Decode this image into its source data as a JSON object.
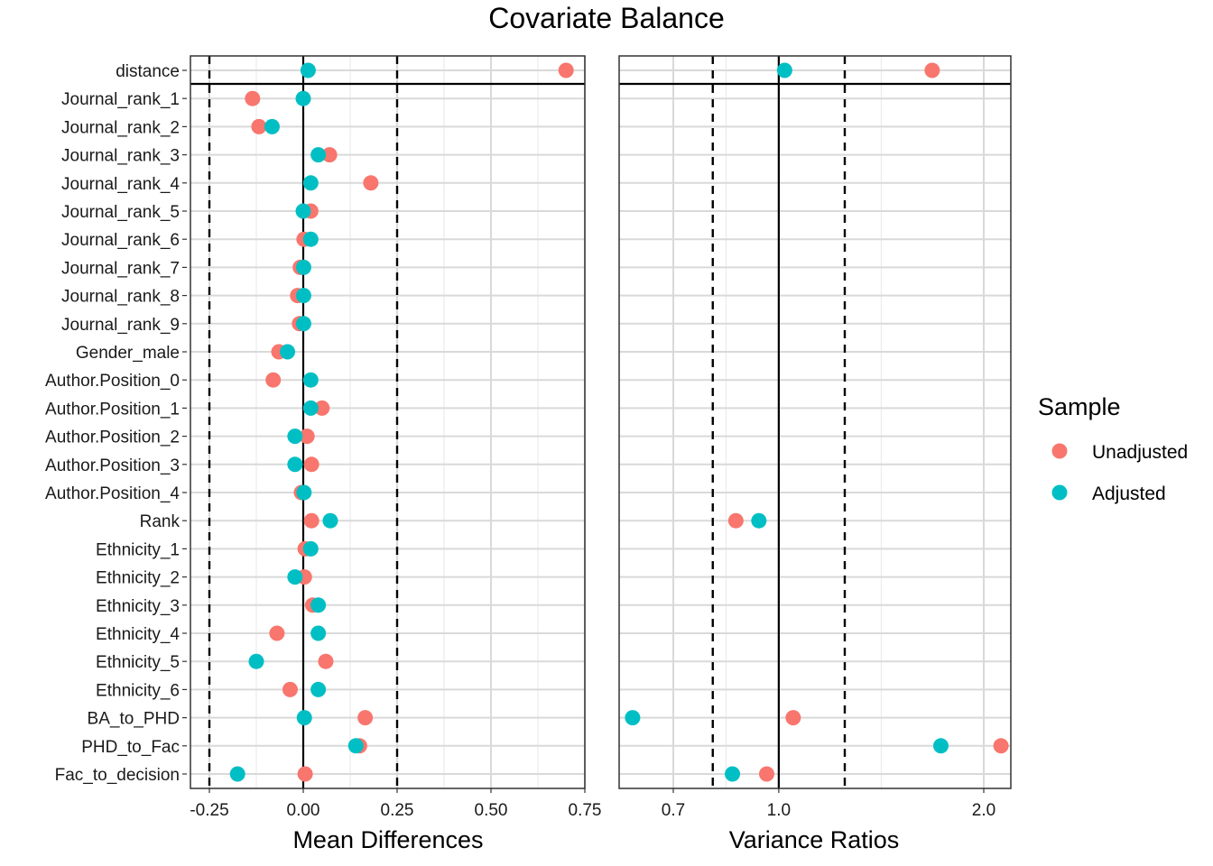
{
  "chart_data": {
    "type": "scatter",
    "title": "Covariate Balance",
    "variables": [
      "distance",
      "Journal_rank_1",
      "Journal_rank_2",
      "Journal_rank_3",
      "Journal_rank_4",
      "Journal_rank_5",
      "Journal_rank_6",
      "Journal_rank_7",
      "Journal_rank_8",
      "Journal_rank_9",
      "Gender_male",
      "Author.Position_0",
      "Author.Position_1",
      "Author.Position_2",
      "Author.Position_3",
      "Author.Position_4",
      "Rank",
      "Ethnicity_1",
      "Ethnicity_2",
      "Ethnicity_3",
      "Ethnicity_4",
      "Ethnicity_5",
      "Ethnicity_6",
      "BA_to_PHD",
      "PHD_to_Fac",
      "Fac_to_decision"
    ],
    "legend": {
      "title": "Sample",
      "position": "right",
      "entries": [
        {
          "name": "Unadjusted",
          "color": "#F8766D"
        },
        {
          "name": "Adjusted",
          "color": "#00BFC4"
        }
      ]
    },
    "panels": [
      {
        "id": "mean_diff",
        "xlabel": "Mean Differences",
        "xlim": [
          -0.3,
          0.75
        ],
        "scale": "linear",
        "ticks": [
          -0.25,
          0.0,
          0.25,
          0.5,
          0.75
        ],
        "tick_labels": [
          "-0.25",
          "0.00",
          "0.25",
          "0.50",
          "0.75"
        ],
        "reference_line": 0,
        "threshold_lines": [
          -0.25,
          0.25
        ],
        "series": [
          {
            "name": "Unadjusted",
            "values": [
              0.7,
              -0.135,
              -0.118,
              0.07,
              0.18,
              0.02,
              0.002,
              -0.008,
              -0.015,
              -0.01,
              -0.065,
              -0.08,
              0.05,
              0.01,
              0.022,
              -0.005,
              0.022,
              0.005,
              0.003,
              0.025,
              -0.07,
              0.06,
              -0.035,
              0.165,
              0.15,
              0.005
            ]
          },
          {
            "name": "Adjusted",
            "values": [
              0.013,
              0.0,
              -0.083,
              0.04,
              0.02,
              0.0,
              0.02,
              0.001,
              0.001,
              0.001,
              -0.042,
              0.02,
              0.02,
              -0.022,
              -0.022,
              0.002,
              0.072,
              0.02,
              -0.022,
              0.04,
              0.04,
              -0.125,
              0.04,
              0.003,
              0.14,
              -0.175
            ]
          }
        ]
      },
      {
        "id": "var_ratio",
        "xlabel": "Variance Ratios",
        "scale": "log",
        "xlim": [
          0.57,
          2.25
        ],
        "ticks": [
          0.7,
          1.0,
          2.0
        ],
        "tick_labels": [
          "0.7",
          "1.0",
          "2.0"
        ],
        "reference_line": 1.0,
        "threshold_lines": [
          0.8,
          1.25
        ],
        "series": [
          {
            "name": "Unadjusted",
            "values": [
              1.68,
              null,
              null,
              null,
              null,
              null,
              null,
              null,
              null,
              null,
              null,
              null,
              null,
              null,
              null,
              null,
              0.865,
              null,
              null,
              null,
              null,
              null,
              null,
              1.05,
              2.12,
              0.96
            ]
          },
          {
            "name": "Adjusted",
            "values": [
              1.02,
              null,
              null,
              null,
              null,
              null,
              null,
              null,
              null,
              null,
              null,
              null,
              null,
              null,
              null,
              null,
              0.935,
              null,
              null,
              null,
              null,
              null,
              null,
              0.61,
              1.73,
              0.855
            ]
          }
        ]
      }
    ]
  }
}
